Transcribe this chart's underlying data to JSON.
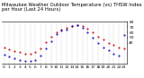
{
  "title": "Milwaukee Weather Outdoor Temperature (vs) THSW Index per Hour (Last 24 Hours)",
  "temp": [
    32,
    28,
    25,
    22,
    20,
    19,
    22,
    30,
    42,
    52,
    60,
    65,
    68,
    72,
    74,
    72,
    67,
    60,
    52,
    46,
    40,
    36,
    32,
    30
  ],
  "thsw": [
    18,
    14,
    10,
    8,
    6,
    5,
    8,
    16,
    30,
    44,
    56,
    63,
    66,
    72,
    73,
    68,
    60,
    50,
    40,
    32,
    26,
    20,
    16,
    55
  ],
  "temp_color": "#cc0000",
  "thsw_color": "#0000cc",
  "bg_color": "#ffffff",
  "grid_color": "#888888",
  "ylim": [
    0,
    80
  ],
  "ytick_vals": [
    40,
    50,
    60,
    70,
    80
  ],
  "n_hours": 24,
  "title_fontsize": 3.8,
  "tick_fontsize": 3.2,
  "marker_size": 1.0,
  "line_width": 0.5
}
